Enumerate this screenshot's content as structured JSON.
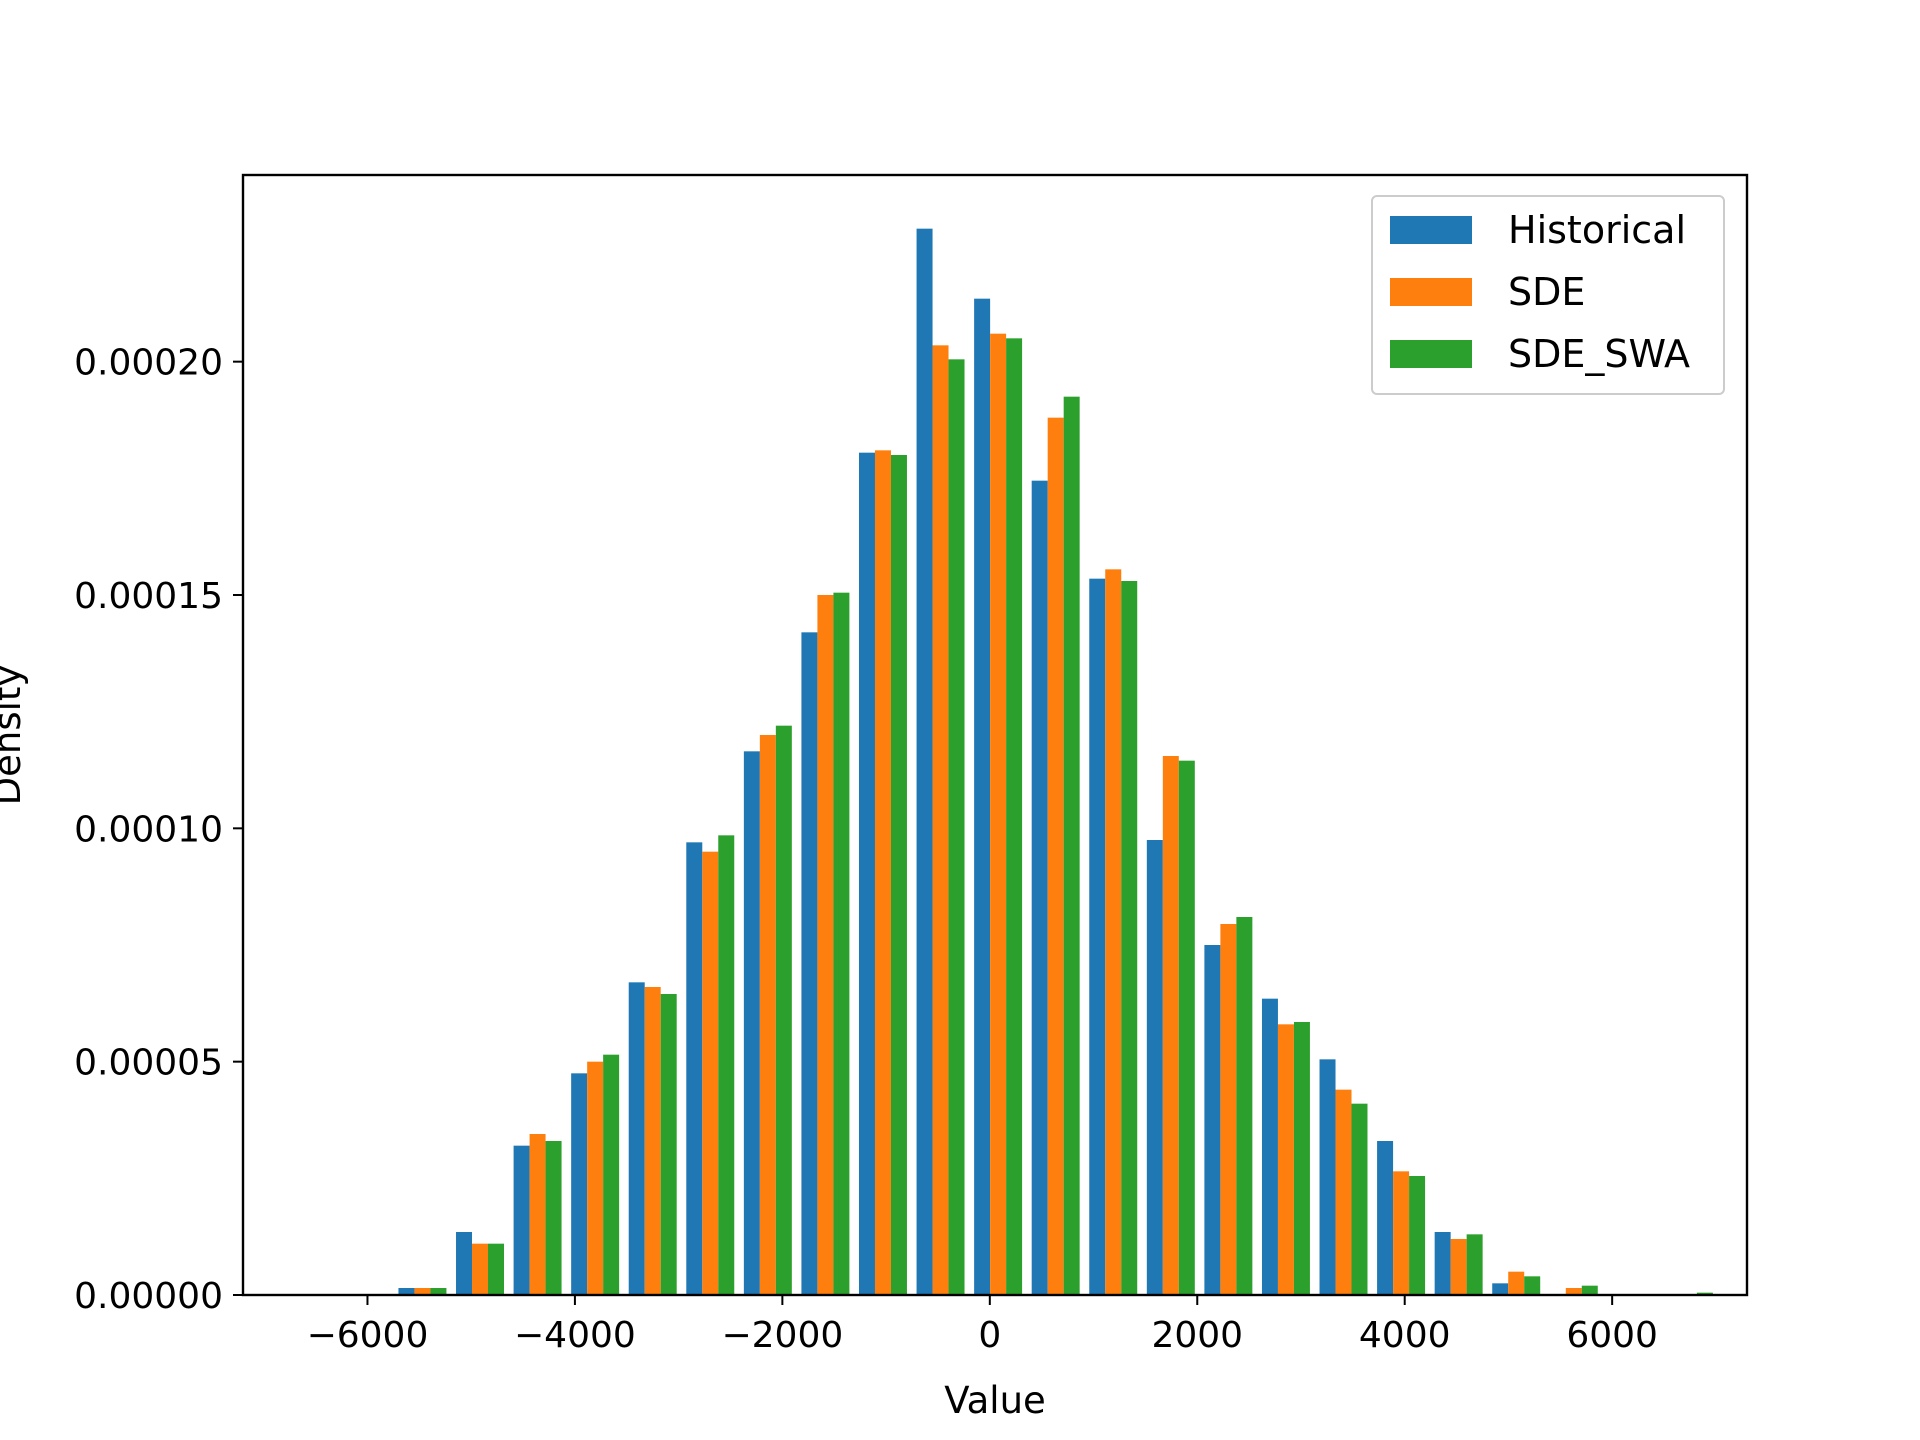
{
  "chart_data": {
    "type": "bar",
    "title": "",
    "xlabel": "Value",
    "ylabel": "Density",
    "xlim": [
      -7200,
      7300
    ],
    "ylim": [
      0,
      0.00024
    ],
    "xticks": [
      -6000,
      -4000,
      -2000,
      0,
      2000,
      4000,
      6000
    ],
    "xtick_labels": [
      "−6000",
      "−4000",
      "−2000",
      "0",
      "2000",
      "4000",
      "6000"
    ],
    "yticks": [
      0,
      5e-05,
      0.0001,
      0.00015,
      0.0002
    ],
    "ytick_labels": [
      "0.00000",
      "0.00005",
      "0.00010",
      "0.00015",
      "0.00020"
    ],
    "bin_centers": [
      -6025,
      -5470,
      -4915,
      -4360,
      -3805,
      -3250,
      -2695,
      -2140,
      -1585,
      -1030,
      -475,
      80,
      635,
      1190,
      1745,
      2300,
      2855,
      3410,
      3965,
      4520,
      5075,
      5630,
      6185,
      6740
    ],
    "grid": false,
    "legend_position": "top-right",
    "series": [
      {
        "name": "Historical",
        "color": "#1f77b4",
        "values": [
          0,
          1.5e-06,
          1.35e-05,
          3.2e-05,
          4.75e-05,
          6.7e-05,
          9.7e-05,
          0.0001165,
          0.000142,
          0.0001805,
          0.0002285,
          0.0002135,
          0.0001745,
          0.0001535,
          9.75e-05,
          7.5e-05,
          6.35e-05,
          5.05e-05,
          3.3e-05,
          1.35e-05,
          2.5e-06,
          0,
          0,
          0
        ]
      },
      {
        "name": "SDE",
        "color": "#ff7f0e",
        "values": [
          0,
          1.5e-06,
          1.1e-05,
          3.45e-05,
          5e-05,
          6.6e-05,
          9.5e-05,
          0.00012,
          0.00015,
          0.000181,
          0.0002035,
          0.000206,
          0.000188,
          0.0001555,
          0.0001155,
          7.95e-05,
          5.8e-05,
          4.4e-05,
          2.65e-05,
          1.2e-05,
          5e-06,
          1.5e-06,
          0,
          0
        ]
      },
      {
        "name": "SDE_SWA",
        "color": "#2ca02c",
        "values": [
          0,
          1.5e-06,
          1.1e-05,
          3.3e-05,
          5.15e-05,
          6.45e-05,
          9.85e-05,
          0.000122,
          0.0001505,
          0.00018,
          0.0002005,
          0.000205,
          0.0001925,
          0.000153,
          0.0001145,
          8.1e-05,
          5.85e-05,
          4.1e-05,
          2.55e-05,
          1.3e-05,
          4e-06,
          2e-06,
          0,
          5e-07
        ]
      }
    ]
  }
}
